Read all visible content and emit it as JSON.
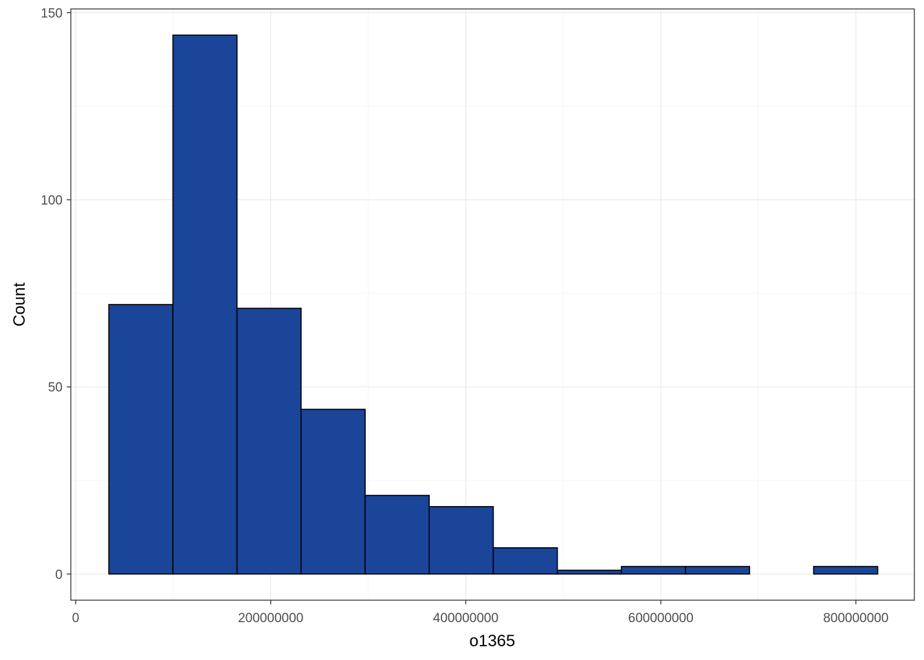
{
  "chart_data": {
    "type": "bar",
    "subtype": "histogram",
    "xlabel": "o1365",
    "ylabel": "Count",
    "xlim": [
      -5000000,
      860000000
    ],
    "ylim": [
      -7,
      151
    ],
    "x_ticks": [
      0,
      200000000,
      400000000,
      600000000,
      800000000
    ],
    "x_tick_labels": [
      "0",
      "200000000",
      "400000000",
      "600000000",
      "800000000"
    ],
    "x_minor_ticks": [
      100000000,
      300000000,
      500000000,
      700000000
    ],
    "y_ticks": [
      0,
      50,
      100,
      150
    ],
    "y_tick_labels": [
      "0",
      "50",
      "100",
      "150"
    ],
    "y_minor_ticks": [
      25,
      75,
      125
    ],
    "grid": true,
    "bins": [
      {
        "x0": 34000000,
        "x1": 99700000,
        "count": 72
      },
      {
        "x0": 99700000,
        "x1": 165400000,
        "count": 144
      },
      {
        "x0": 165400000,
        "x1": 231100000,
        "count": 71
      },
      {
        "x0": 231100000,
        "x1": 296800000,
        "count": 44
      },
      {
        "x0": 296800000,
        "x1": 362500000,
        "count": 21
      },
      {
        "x0": 362500000,
        "x1": 428200000,
        "count": 18
      },
      {
        "x0": 428200000,
        "x1": 493900000,
        "count": 7
      },
      {
        "x0": 493900000,
        "x1": 559600000,
        "count": 1
      },
      {
        "x0": 559600000,
        "x1": 625300000,
        "count": 2
      },
      {
        "x0": 625300000,
        "x1": 691000000,
        "count": 2
      },
      {
        "x0": 691000000,
        "x1": 756700000,
        "count": 0
      },
      {
        "x0": 756700000,
        "x1": 822400000,
        "count": 2
      }
    ],
    "colors": {
      "bar_fill": "#1a4599",
      "bar_outline": "#000000",
      "panel_border": "#333333",
      "grid_major": "#ebebeb",
      "grid_minor": "#f5f5f5",
      "tick_text": "#4d4d4d"
    }
  }
}
